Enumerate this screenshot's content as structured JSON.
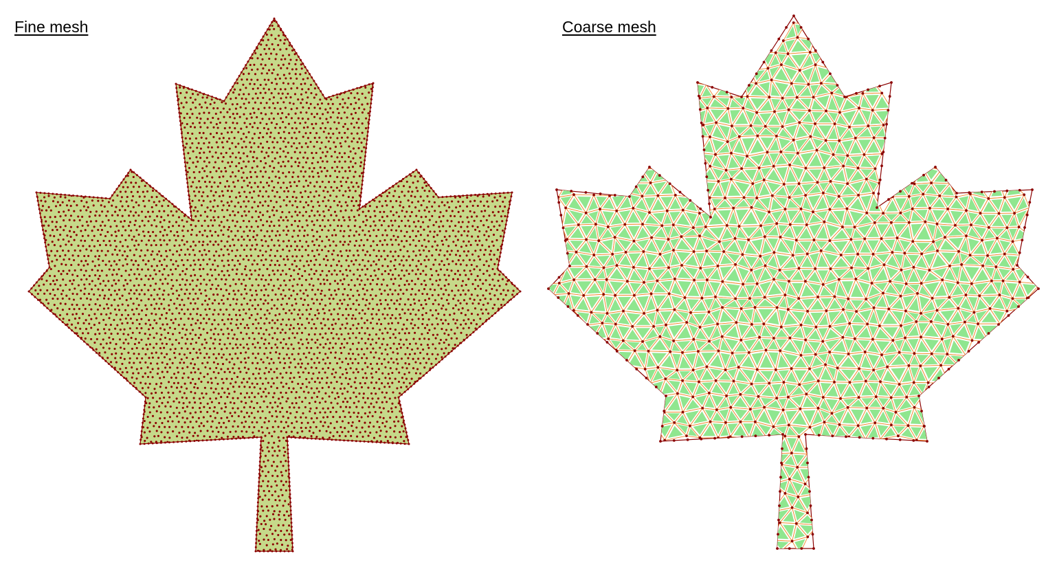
{
  "panels": {
    "fine": {
      "title": "Fine mesh"
    },
    "coarse": {
      "title": "Coarse mesh"
    }
  },
  "colors": {
    "fine_fill": "#c6d98a",
    "coarse_fill": "#8fe68f",
    "coarse_edge": "#f08a2a",
    "node": "#8b0000",
    "outline": "#8b0000"
  }
}
